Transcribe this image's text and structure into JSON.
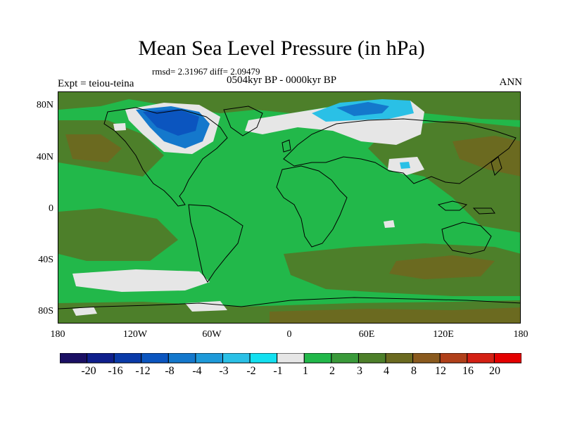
{
  "title": "Mean Sea Level Pressure (in hPa)",
  "stats": "rmsd= 2.31967 diff= 2.09479",
  "period": "0504kyr BP - 0000kyr BP",
  "experiment": "Expt = teiou-teina",
  "season": "ANN",
  "axes": {
    "lat_labels": [
      "80N",
      "40N",
      "0",
      "40S",
      "80S"
    ],
    "lon_labels": [
      "180",
      "120W",
      "60W",
      "0",
      "60E",
      "120E",
      "180"
    ]
  },
  "colorbar": {
    "labels": [
      "-20",
      "-16",
      "-12",
      "-8",
      "-4",
      "-3",
      "-2",
      "-1",
      "1",
      "2",
      "3",
      "4",
      "8",
      "12",
      "16",
      "20"
    ],
    "colors": [
      "#1a0f63",
      "#0f1f8c",
      "#0a3aa8",
      "#0b55bf",
      "#1478cc",
      "#1e9ad9",
      "#2ac0e6",
      "#13e0f0",
      "#e6e6e6",
      "#22b84a",
      "#3a9a3a",
      "#4d7f2a",
      "#6b6a20",
      "#8a5a1e",
      "#b0401a",
      "#d42014",
      "#e40000"
    ]
  },
  "palette": {
    "ocean_green": "#22b84a",
    "mid_green": "#3a9a3a",
    "olive": "#4d7f2a",
    "brown": "#6b6a20",
    "white": "#e6e6e6",
    "blue": "#1478cc",
    "deep_blue": "#0b55bf",
    "cyan": "#2ac0e6",
    "coast": "#000000"
  }
}
